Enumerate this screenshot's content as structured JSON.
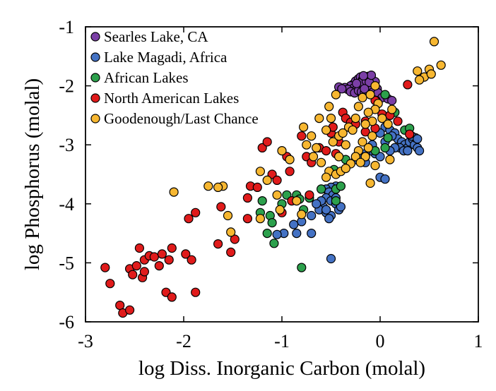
{
  "chart_data": {
    "type": "scatter",
    "xlabel": "log Diss. Inorganic Carbon (molal)",
    "ylabel": "log Phosphorus (molal)",
    "xlim": [
      -3,
      1
    ],
    "ylim": [
      -6,
      -1
    ],
    "xticks": [
      "-3",
      "-2",
      "-1",
      "0",
      "1"
    ],
    "yticks": [
      "-1",
      "-2",
      "-3",
      "-4",
      "-5",
      "-6"
    ],
    "grid": false,
    "legend_position": "top-left",
    "series": [
      {
        "name": "Searles Lake, CA",
        "color": "#7b3fa6",
        "points": [
          [
            -0.28,
            -1.98
          ],
          [
            -0.25,
            -1.92
          ],
          [
            -0.22,
            -1.88
          ],
          [
            -0.2,
            -1.85
          ],
          [
            -0.18,
            -1.9
          ],
          [
            -0.15,
            -1.86
          ],
          [
            -0.12,
            -1.84
          ],
          [
            -0.1,
            -1.87
          ],
          [
            -0.08,
            -1.9
          ],
          [
            -0.05,
            -1.93
          ],
          [
            -0.3,
            -2.0
          ],
          [
            -0.27,
            -2.04
          ],
          [
            -0.24,
            -2.06
          ],
          [
            -0.21,
            -2.02
          ],
          [
            -0.18,
            -2.0
          ],
          [
            -0.15,
            -1.98
          ],
          [
            -0.12,
            -1.96
          ],
          [
            -0.09,
            -2.0
          ],
          [
            -0.06,
            -2.02
          ],
          [
            -0.03,
            -2.05
          ],
          [
            -0.36,
            -2.03
          ],
          [
            -0.33,
            -2.06
          ],
          [
            -0.3,
            -2.1
          ],
          [
            -0.26,
            -2.12
          ],
          [
            -0.22,
            -2.08
          ],
          [
            -0.19,
            -2.1
          ],
          [
            -0.16,
            -2.12
          ],
          [
            -0.13,
            -2.08
          ],
          [
            -0.1,
            -2.06
          ],
          [
            -0.07,
            -2.1
          ],
          [
            -0.42,
            -2.02
          ],
          [
            -0.39,
            -2.05
          ],
          [
            -0.2,
            -1.95
          ],
          [
            -0.14,
            -1.92
          ],
          [
            -0.11,
            -1.94
          ],
          [
            -0.24,
            -1.96
          ],
          [
            -0.02,
            -2.12
          ],
          [
            0.02,
            -2.2
          ],
          [
            -0.04,
            -2.25
          ],
          [
            0.08,
            -2.22
          ],
          [
            0.12,
            -2.25
          ],
          [
            -0.16,
            -2.05
          ],
          [
            -0.09,
            -1.82
          ],
          [
            -0.17,
            -1.83
          ]
        ]
      },
      {
        "name": "Lake Magadi, Africa",
        "color": "#4472c4",
        "points": [
          [
            0.05,
            -2.7
          ],
          [
            0.1,
            -2.75
          ],
          [
            0.15,
            -2.8
          ],
          [
            0.18,
            -2.9
          ],
          [
            0.22,
            -2.95
          ],
          [
            0.25,
            -3.0
          ],
          [
            0.28,
            -3.05
          ],
          [
            0.3,
            -2.95
          ],
          [
            0.33,
            -2.9
          ],
          [
            0.35,
            -3.0
          ],
          [
            0.38,
            -3.05
          ],
          [
            0.4,
            -3.1
          ],
          [
            0.36,
            -2.88
          ],
          [
            0.32,
            -2.85
          ],
          [
            0.2,
            -3.05
          ],
          [
            0.24,
            -3.1
          ],
          [
            0.15,
            -3.05
          ],
          [
            0.1,
            -3.1
          ],
          [
            0.05,
            -2.95
          ],
          [
            0.28,
            -3.1
          ],
          [
            0.38,
            -2.9
          ],
          [
            0.12,
            -2.85
          ],
          [
            0.0,
            -2.8
          ],
          [
            -0.05,
            -3.15
          ],
          [
            -0.1,
            -3.1
          ],
          [
            -0.15,
            -3.15
          ],
          [
            -0.2,
            -3.2
          ],
          [
            -0.25,
            -3.25
          ],
          [
            -0.15,
            -3.3
          ],
          [
            0.0,
            -3.55
          ],
          [
            0.05,
            -3.58
          ],
          [
            -0.45,
            -3.7
          ],
          [
            -0.5,
            -3.72
          ],
          [
            -0.55,
            -3.75
          ],
          [
            -0.52,
            -3.8
          ],
          [
            -0.48,
            -3.85
          ],
          [
            -0.55,
            -3.9
          ],
          [
            -0.5,
            -3.95
          ],
          [
            -0.45,
            -4.0
          ],
          [
            -0.58,
            -4.05
          ],
          [
            -0.62,
            -4.1
          ],
          [
            -0.55,
            -4.15
          ],
          [
            -0.5,
            -4.2
          ],
          [
            -0.42,
            -4.1
          ],
          [
            -0.6,
            -3.95
          ],
          [
            -0.65,
            -4.0
          ],
          [
            -0.52,
            -4.25
          ],
          [
            -0.4,
            -4.05
          ],
          [
            -0.7,
            -4.2
          ],
          [
            -0.8,
            -4.3
          ],
          [
            -0.88,
            -4.35
          ],
          [
            -0.98,
            -4.5
          ],
          [
            -1.05,
            -4.52
          ],
          [
            -0.85,
            -4.5
          ],
          [
            -0.7,
            -4.5
          ],
          [
            -0.5,
            -4.93
          ],
          [
            -0.55,
            -4.1
          ],
          [
            -0.45,
            -3.9
          ],
          [
            0.0,
            -3.2
          ],
          [
            -0.08,
            -3.0
          ]
        ]
      },
      {
        "name": "African Lakes",
        "color": "#2ca04c",
        "points": [
          [
            0.05,
            -2.15
          ],
          [
            0.15,
            -2.45
          ],
          [
            0.25,
            -2.75
          ],
          [
            0.3,
            -2.72
          ],
          [
            0.08,
            -2.88
          ],
          [
            0.05,
            -3.05
          ],
          [
            -0.05,
            -3.1
          ],
          [
            -0.15,
            -3.2
          ],
          [
            -0.35,
            -3.25
          ],
          [
            -0.47,
            -3.42
          ],
          [
            -0.6,
            -3.75
          ],
          [
            -0.85,
            -3.85
          ],
          [
            -0.95,
            -3.85
          ],
          [
            -1.0,
            -4.0
          ],
          [
            -1.2,
            -3.95
          ],
          [
            -1.22,
            -4.15
          ],
          [
            -1.12,
            -4.2
          ],
          [
            -1.15,
            -4.5
          ],
          [
            -1.1,
            -4.32
          ],
          [
            -1.08,
            -4.67
          ],
          [
            -0.82,
            -3.92
          ],
          [
            -0.72,
            -3.9
          ],
          [
            -0.78,
            -4.1
          ],
          [
            -0.45,
            -3.75
          ],
          [
            -0.4,
            -3.7
          ],
          [
            -0.45,
            -3.95
          ],
          [
            -0.8,
            -5.08
          ]
        ]
      },
      {
        "name": "North American Lakes",
        "color": "#e01b1b",
        "points": [
          [
            -2.8,
            -5.08
          ],
          [
            -2.75,
            -5.35
          ],
          [
            -2.65,
            -5.72
          ],
          [
            -2.62,
            -5.85
          ],
          [
            -2.55,
            -5.8
          ],
          [
            -2.55,
            -5.1
          ],
          [
            -2.52,
            -5.2
          ],
          [
            -2.48,
            -5.05
          ],
          [
            -2.45,
            -4.75
          ],
          [
            -2.42,
            -5.25
          ],
          [
            -2.4,
            -5.15
          ],
          [
            -2.4,
            -4.95
          ],
          [
            -2.35,
            -4.88
          ],
          [
            -2.3,
            -4.9
          ],
          [
            -2.25,
            -5.05
          ],
          [
            -2.22,
            -4.85
          ],
          [
            -2.15,
            -4.95
          ],
          [
            -2.12,
            -4.75
          ],
          [
            -2.18,
            -5.5
          ],
          [
            -2.12,
            -5.58
          ],
          [
            -1.98,
            -4.85
          ],
          [
            -1.92,
            -4.95
          ],
          [
            -1.95,
            -4.25
          ],
          [
            -1.88,
            -4.15
          ],
          [
            -1.88,
            -5.5
          ],
          [
            -1.65,
            -4.68
          ],
          [
            -1.62,
            -4.05
          ],
          [
            -1.52,
            -4.82
          ],
          [
            -1.48,
            -4.6
          ],
          [
            -1.35,
            -4.25
          ],
          [
            -1.35,
            -3.9
          ],
          [
            -1.32,
            -3.7
          ],
          [
            -1.25,
            -3.72
          ],
          [
            -1.2,
            -3.05
          ],
          [
            -1.1,
            -3.5
          ],
          [
            -1.05,
            -3.6
          ],
          [
            -1.0,
            -4.15
          ],
          [
            -0.95,
            -3.2
          ],
          [
            -0.92,
            -3.45
          ],
          [
            -0.9,
            -3.95
          ],
          [
            -0.8,
            -2.85
          ],
          [
            -0.75,
            -3.2
          ],
          [
            -0.72,
            -3.85
          ],
          [
            -0.7,
            -3.3
          ],
          [
            -0.62,
            -3.05
          ],
          [
            -0.55,
            -3.1
          ],
          [
            -0.5,
            -2.8
          ],
          [
            -0.48,
            -2.7
          ],
          [
            -0.45,
            -3.15
          ],
          [
            -0.42,
            -2.95
          ],
          [
            -0.38,
            -2.45
          ],
          [
            -0.35,
            -2.55
          ],
          [
            -0.3,
            -2.62
          ],
          [
            -0.25,
            -2.65
          ],
          [
            -0.15,
            -2.6
          ],
          [
            -0.05,
            -2.72
          ],
          [
            0.02,
            -2.48
          ],
          [
            0.1,
            -2.5
          ],
          [
            0.18,
            -2.6
          ],
          [
            0.3,
            -2.82
          ],
          [
            0.28,
            -1.98
          ],
          [
            -0.05,
            -2.25
          ],
          [
            -1.15,
            -2.95
          ],
          [
            -0.15,
            -2.78
          ]
        ]
      },
      {
        "name": "Goodenough/Last Chance",
        "color": "#f7b731",
        "points": [
          [
            0.55,
            -1.25
          ],
          [
            0.62,
            -1.65
          ],
          [
            0.5,
            -1.72
          ],
          [
            0.45,
            -1.85
          ],
          [
            0.52,
            -1.8
          ],
          [
            0.4,
            -1.9
          ],
          [
            0.38,
            -1.75
          ],
          [
            -0.5,
            -2.55
          ],
          [
            -0.55,
            -2.75
          ],
          [
            -0.48,
            -2.95
          ],
          [
            -0.42,
            -2.85
          ],
          [
            -0.38,
            -2.8
          ],
          [
            -0.35,
            -3.0
          ],
          [
            -0.32,
            -2.7
          ],
          [
            -0.28,
            -2.75
          ],
          [
            -0.22,
            -3.1
          ],
          [
            -0.18,
            -2.95
          ],
          [
            -0.15,
            -3.2
          ],
          [
            -0.12,
            -3.05
          ],
          [
            -0.08,
            -2.85
          ],
          [
            -0.05,
            -3.35
          ],
          [
            -0.1,
            -3.65
          ],
          [
            -0.02,
            -2.3
          ],
          [
            -0.05,
            -2.4
          ],
          [
            -0.08,
            -2.6
          ],
          [
            -0.12,
            -2.45
          ],
          [
            -0.18,
            -2.2
          ],
          [
            -0.22,
            -2.35
          ],
          [
            -0.25,
            -2.55
          ],
          [
            0.02,
            -2.55
          ],
          [
            0.08,
            -2.65
          ],
          [
            0.12,
            -2.4
          ],
          [
            -0.1,
            -2.15
          ],
          [
            -0.45,
            -2.15
          ],
          [
            -0.52,
            -2.35
          ],
          [
            -0.62,
            -2.55
          ],
          [
            -0.65,
            -3.05
          ],
          [
            -0.68,
            -3.2
          ],
          [
            -0.7,
            -2.85
          ],
          [
            -0.75,
            -3.0
          ],
          [
            -0.78,
            -2.7
          ],
          [
            -0.52,
            -3.45
          ],
          [
            -0.45,
            -3.5
          ],
          [
            -0.4,
            -3.45
          ],
          [
            -0.3,
            -3.32
          ],
          [
            -0.25,
            -3.2
          ],
          [
            -0.2,
            -3.3
          ],
          [
            -1.22,
            -3.45
          ],
          [
            -1.15,
            -3.6
          ],
          [
            -1.05,
            -3.85
          ],
          [
            -1.02,
            -4.1
          ],
          [
            -1.0,
            -3.1
          ],
          [
            -0.92,
            -3.25
          ],
          [
            -1.22,
            -4.25
          ],
          [
            -1.6,
            -3.7
          ],
          [
            -1.55,
            -4.2
          ],
          [
            -1.52,
            -4.48
          ],
          [
            -1.75,
            -3.7
          ],
          [
            -1.65,
            -3.72
          ],
          [
            -2.1,
            -3.8
          ],
          [
            -0.8,
            -4.18
          ],
          [
            -0.85,
            -3.95
          ],
          [
            -0.55,
            -3.55
          ],
          [
            -0.6,
            -3.3
          ],
          [
            -0.42,
            -3.2
          ],
          [
            -0.35,
            -3.4
          ],
          [
            -0.05,
            -2.0
          ],
          [
            0.1,
            -3.25
          ],
          [
            -0.15,
            -2.65
          ]
        ]
      }
    ]
  }
}
